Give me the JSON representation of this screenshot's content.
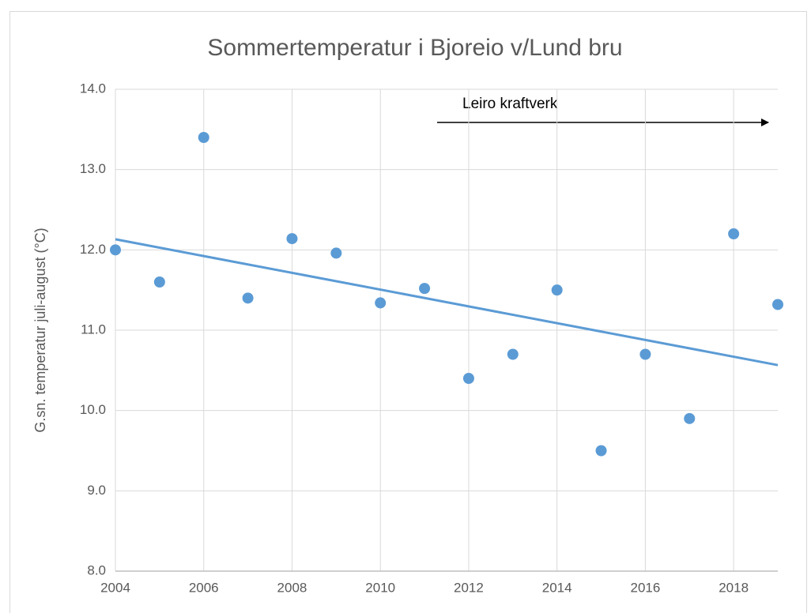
{
  "chart_data": {
    "type": "scatter",
    "title": "Sommertemperatur i Bjoreio v/Lund bru",
    "y_label": "G.sn. temperatur juli-august (°C)",
    "annotation": "Leiro kraftverk",
    "x": [
      2004,
      2005,
      2006,
      2007,
      2008,
      2009,
      2010,
      2011,
      2012,
      2013,
      2014,
      2015,
      2016,
      2017,
      2018,
      2019
    ],
    "values": [
      12.0,
      11.6,
      13.4,
      11.4,
      12.14,
      11.96,
      11.34,
      11.52,
      10.4,
      10.7,
      11.5,
      9.5,
      10.7,
      9.9,
      12.2,
      11.32
    ],
    "color": "#5b9bd5",
    "trendline": true,
    "xlim": [
      2004,
      2019
    ],
    "xticks": [
      2004,
      2006,
      2008,
      2010,
      2012,
      2014,
      2016,
      2018
    ],
    "ylim": [
      8,
      14
    ],
    "yticks": [
      {
        "value": 8,
        "label": "8.0"
      },
      {
        "value": 9,
        "label": "9.0"
      },
      {
        "value": 10,
        "label": "10.0"
      },
      {
        "value": 11,
        "label": "11.0"
      },
      {
        "value": 12,
        "label": "12.0"
      },
      {
        "value": 13,
        "label": "13.0"
      },
      {
        "value": 14,
        "label": "14.0"
      }
    ],
    "grid": true
  }
}
